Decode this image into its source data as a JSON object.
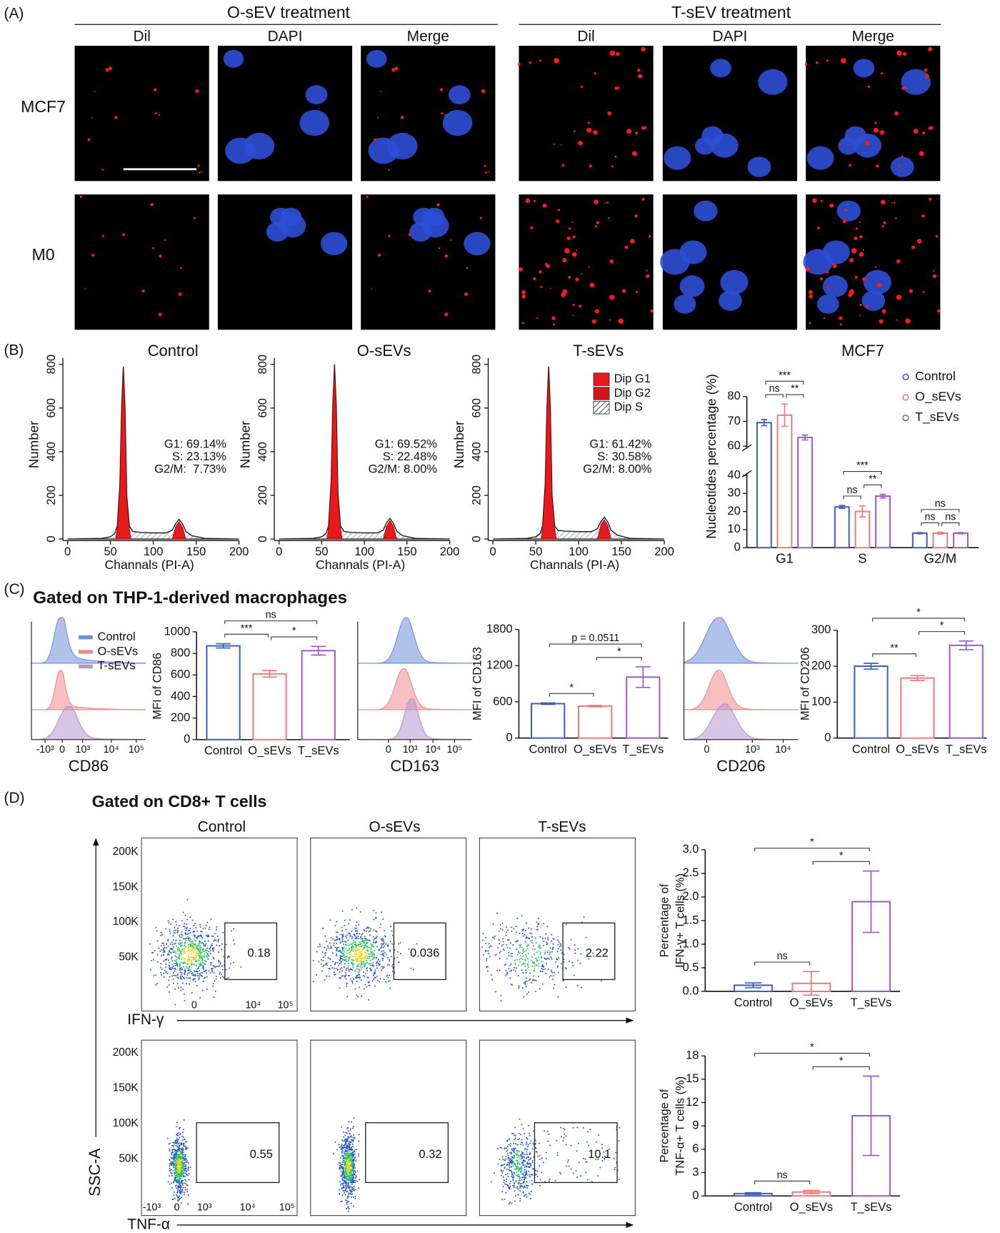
{
  "panels": {
    "A": {
      "label": "(A)",
      "groups": [
        "O-sEV treatment",
        "T-sEV treatment"
      ],
      "channels": [
        "Dil",
        "DAPI",
        "Merge"
      ],
      "rows": [
        "MCF7",
        "M0"
      ]
    },
    "B": {
      "label": "(B)"
    },
    "C": {
      "label": "(C)",
      "title": "Gated on THP-1-derived macrophages",
      "legend": [
        {
          "name": "Control",
          "color": "#6f8fd8"
        },
        {
          "name": "O-sEVs",
          "color": "#f08a8a"
        },
        {
          "name": "T-sEVs",
          "color": "#b795cf"
        }
      ],
      "histograms": [
        {
          "marker": "CD86",
          "xticks": [
            "-10³",
            "0",
            "10³",
            "10⁴",
            "10⁵"
          ]
        },
        {
          "marker": "CD163",
          "xticks": [
            "0",
            "10³",
            "10⁴",
            "10⁵"
          ]
        },
        {
          "marker": "CD206",
          "xticks": [
            "0",
            "10³",
            "10⁴"
          ]
        }
      ]
    },
    "D": {
      "label": "(D)",
      "title": "Gated on CD8+ T cells",
      "columns": [
        "Control",
        "O-sEVs",
        "T-sEVs"
      ],
      "yaxis": "SSC-A",
      "yticks": [
        "50K",
        "100K",
        "150K",
        "200K"
      ],
      "rows": [
        {
          "marker": "IFN-γ",
          "xticks": [
            "0",
            "10⁴",
            "10⁵"
          ],
          "gates": [
            0.18,
            0.036,
            2.22
          ]
        },
        {
          "marker": "TNF-α",
          "xticks": [
            "-10³",
            "0",
            "10³",
            "10⁴",
            "10⁵"
          ],
          "gates": [
            0.55,
            0.32,
            10.1
          ]
        }
      ]
    }
  },
  "chart_data": [
    {
      "type": "line",
      "title": "Control",
      "xlabel": "Channals (PI-A)",
      "ylabel": "Number",
      "xlim": [
        0,
        200
      ],
      "xticks": [
        0,
        50,
        100,
        150,
        200
      ],
      "ylim": [
        0,
        800
      ],
      "yticks": [
        0,
        200,
        400,
        600,
        800
      ],
      "color": "#222222",
      "fill_color": "#e8191c",
      "x": [
        0,
        40,
        50,
        55,
        58,
        61,
        63,
        65,
        67,
        69,
        72,
        76,
        85,
        100,
        115,
        122,
        126,
        130,
        134,
        138,
        145,
        160,
        200
      ],
      "values": [
        0,
        3,
        10,
        25,
        60,
        250,
        600,
        790,
        600,
        200,
        60,
        35,
        30,
        28,
        28,
        40,
        70,
        90,
        70,
        35,
        15,
        3,
        0
      ],
      "g1": {
        "x": [
          56,
          58,
          61,
          63,
          65,
          67,
          69,
          72,
          74
        ],
        "values": [
          0,
          50,
          240,
          590,
          780,
          590,
          190,
          50,
          0
        ]
      },
      "g2": {
        "x": [
          122,
          126,
          130,
          134,
          138
        ],
        "values": [
          0,
          55,
          80,
          55,
          0
        ]
      },
      "stats": [
        "G1: 69.14%",
        "S: 23.13%",
        "G2/M:  7.73%"
      ]
    },
    {
      "type": "line",
      "title": "O-sEVs",
      "xlabel": "Channals (PI-A)",
      "ylabel": "Number",
      "xlim": [
        0,
        200
      ],
      "xticks": [
        0,
        50,
        100,
        150,
        200
      ],
      "ylim": [
        0,
        800
      ],
      "yticks": [
        0,
        200,
        400,
        600,
        800
      ],
      "color": "#222222",
      "fill_color": "#e8191c",
      "x": [
        0,
        40,
        50,
        55,
        58,
        61,
        63,
        65,
        67,
        69,
        72,
        76,
        85,
        100,
        115,
        122,
        126,
        130,
        134,
        138,
        145,
        160,
        200
      ],
      "values": [
        0,
        3,
        10,
        25,
        60,
        260,
        620,
        800,
        610,
        210,
        60,
        35,
        30,
        28,
        28,
        40,
        75,
        95,
        72,
        35,
        15,
        3,
        0
      ],
      "g1": {
        "x": [
          56,
          58,
          61,
          63,
          65,
          67,
          69,
          72,
          74
        ],
        "values": [
          0,
          50,
          250,
          610,
          790,
          600,
          200,
          50,
          0
        ]
      },
      "g2": {
        "x": [
          122,
          126,
          130,
          134,
          138
        ],
        "values": [
          0,
          60,
          85,
          58,
          0
        ]
      },
      "stats": [
        "G1: 69.52%",
        "S: 22.48%",
        "G2/M: 8.00%"
      ]
    },
    {
      "type": "line",
      "title": "T-sEVs",
      "xlabel": "Channals (PI-A)",
      "ylabel": "Number",
      "xlim": [
        0,
        200
      ],
      "xticks": [
        0,
        50,
        100,
        150,
        200
      ],
      "ylim": [
        0,
        800
      ],
      "yticks": [
        0,
        200,
        400,
        600,
        800
      ],
      "color": "#222222",
      "fill_color": "#e8191c",
      "x": [
        0,
        40,
        50,
        55,
        58,
        61,
        63,
        65,
        67,
        69,
        72,
        76,
        85,
        100,
        115,
        122,
        126,
        130,
        134,
        138,
        145,
        160,
        200
      ],
      "values": [
        0,
        3,
        10,
        25,
        60,
        250,
        600,
        790,
        600,
        200,
        60,
        40,
        36,
        34,
        34,
        48,
        80,
        100,
        78,
        40,
        18,
        3,
        0
      ],
      "g1": {
        "x": [
          56,
          58,
          61,
          63,
          65,
          67,
          69,
          72,
          74
        ],
        "values": [
          0,
          50,
          240,
          590,
          780,
          590,
          190,
          50,
          0
        ]
      },
      "g2": {
        "x": [
          122,
          126,
          130,
          134,
          138
        ],
        "values": [
          0,
          65,
          88,
          62,
          0
        ]
      },
      "stats": [
        "G1: 61.42%",
        "S: 30.58%",
        "G2/M: 8.00%"
      ],
      "legend": [
        {
          "name": "Dip G1",
          "color": "#e8191c"
        },
        {
          "name": "Dip G2",
          "color": "#d4161a"
        },
        {
          "name": "Dip S",
          "pattern": "hatch"
        }
      ]
    },
    {
      "type": "bar",
      "title": "MCF7",
      "ylabel": "Nucleotides percentage (%)",
      "categories": [
        "G1",
        "S",
        "G2/M"
      ],
      "ylim": [
        0,
        80
      ],
      "axis_break": [
        40,
        60
      ],
      "yticks": [
        0,
        10,
        20,
        30,
        40,
        60,
        70,
        80
      ],
      "series": [
        {
          "name": "Control",
          "color": "#3a5bbf",
          "values": [
            69.5,
            22.5,
            8
          ],
          "errors": [
            1.2,
            0.8,
            0.3
          ]
        },
        {
          "name": "O_sEVs",
          "color": "#f07878",
          "values": [
            72.5,
            20,
            8
          ],
          "errors": [
            4.5,
            3,
            0.5
          ]
        },
        {
          "name": "T_sEVs",
          "color": "#a155c8",
          "values": [
            63.5,
            28.5,
            8
          ],
          "errors": [
            1,
            1,
            0.3
          ]
        }
      ],
      "comparisons": [
        {
          "category": "G1",
          "between": [
            "Control",
            "O_sEVs"
          ],
          "label": "ns"
        },
        {
          "category": "G1",
          "between": [
            "O_sEVs",
            "T_sEVs"
          ],
          "label": "**"
        },
        {
          "category": "G1",
          "between": [
            "Control",
            "T_sEVs"
          ],
          "label": "***"
        },
        {
          "category": "S",
          "between": [
            "Control",
            "O_sEVs"
          ],
          "label": "ns"
        },
        {
          "category": "S",
          "between": [
            "O_sEVs",
            "T_sEVs"
          ],
          "label": "**"
        },
        {
          "category": "S",
          "between": [
            "Control",
            "T_sEVs"
          ],
          "label": "***"
        },
        {
          "category": "G2/M",
          "between": [
            "Control",
            "O_sEVs"
          ],
          "label": "ns"
        },
        {
          "category": "G2/M",
          "between": [
            "O_sEVs",
            "T_sEVs"
          ],
          "label": "ns"
        },
        {
          "category": "G2/M",
          "between": [
            "Control",
            "T_sEVs"
          ],
          "label": "ns"
        }
      ]
    },
    {
      "type": "bar",
      "ylabel": "MFI of CD86",
      "categories": [
        "Control",
        "O_sEVs",
        "T_sEVs"
      ],
      "colors": [
        "#3a5bbf",
        "#f07878",
        "#a155c8"
      ],
      "values": [
        870,
        610,
        825
      ],
      "errors": [
        20,
        30,
        40
      ],
      "ylim": [
        0,
        1000
      ],
      "yticks": [
        0,
        200,
        400,
        600,
        800,
        1000
      ],
      "comparisons": [
        {
          "between": [
            "Control",
            "O_sEVs"
          ],
          "label": "***"
        },
        {
          "between": [
            "O_sEVs",
            "T_sEVs"
          ],
          "label": "*"
        },
        {
          "between": [
            "Control",
            "T_sEVs"
          ],
          "label": "ns"
        }
      ]
    },
    {
      "type": "bar",
      "ylabel": "MFI of CD163",
      "categories": [
        "Control",
        "O_sEVs",
        "T_sEVs"
      ],
      "colors": [
        "#3a5bbf",
        "#f07878",
        "#a155c8"
      ],
      "values": [
        570,
        530,
        1010
      ],
      "errors": [
        12,
        10,
        170
      ],
      "ylim": [
        0,
        1800
      ],
      "yticks": [
        0,
        600,
        1200,
        1800
      ],
      "comparisons": [
        {
          "between": [
            "Control",
            "O_sEVs"
          ],
          "label": "*"
        },
        {
          "between": [
            "O_sEVs",
            "T_sEVs"
          ],
          "label": "*"
        },
        {
          "between": [
            "Control",
            "T_sEVs"
          ],
          "label": "p = 0.0511"
        }
      ]
    },
    {
      "type": "bar",
      "ylabel": "MFI of CD206",
      "categories": [
        "Control",
        "O_sEVs",
        "T_sEVs"
      ],
      "colors": [
        "#3a5bbf",
        "#f07878",
        "#a155c8"
      ],
      "values": [
        200,
        167,
        258
      ],
      "errors": [
        8,
        7,
        12
      ],
      "ylim": [
        0,
        300
      ],
      "yticks": [
        0,
        100,
        200,
        300
      ],
      "comparisons": [
        {
          "between": [
            "Control",
            "O_sEVs"
          ],
          "label": "**"
        },
        {
          "between": [
            "O_sEVs",
            "T_sEVs"
          ],
          "label": "*"
        },
        {
          "between": [
            "Control",
            "T_sEVs"
          ],
          "label": "*"
        }
      ]
    },
    {
      "type": "bar",
      "ylabel": [
        "Percentage of",
        "IFN-γ+ T cells (%)"
      ],
      "categories": [
        "Control",
        "O_sEVs",
        "T_sEVs"
      ],
      "colors": [
        "#3a5bbf",
        "#f07878",
        "#a155c8"
      ],
      "values": [
        0.13,
        0.17,
        1.9
      ],
      "errors": [
        0.05,
        0.25,
        0.65
      ],
      "ylim": [
        0,
        3
      ],
      "yticks": [
        {
          "value": 0,
          "label": "0.0"
        },
        0.5,
        {
          "value": 1,
          "label": "1.0"
        },
        1.5,
        {
          "value": 2,
          "label": "2.0"
        },
        2.5,
        {
          "value": 3,
          "label": "3.0"
        }
      ],
      "comparisons": [
        {
          "between": [
            "Control",
            "O_sEVs"
          ],
          "label": "ns"
        },
        {
          "between": [
            "O_sEVs",
            "T_sEVs"
          ],
          "label": "*"
        },
        {
          "between": [
            "Control",
            "T_sEVs"
          ],
          "label": "*"
        }
      ]
    },
    {
      "type": "bar",
      "ylabel": [
        "Percentage of",
        "TNF-α+ T cells (%)"
      ],
      "categories": [
        "Control",
        "O_sEVs",
        "T_sEVs"
      ],
      "colors": [
        "#3a5bbf",
        "#f07878",
        "#a155c8"
      ],
      "values": [
        0.3,
        0.5,
        10.3
      ],
      "errors": [
        0.1,
        0.2,
        5.1
      ],
      "ylim": [
        0,
        18
      ],
      "yticks": [
        0,
        3,
        6,
        9,
        12,
        15,
        18
      ],
      "comparisons": [
        {
          "between": [
            "Control",
            "O_sEVs"
          ],
          "label": "ns"
        },
        {
          "between": [
            "O_sEVs",
            "T_sEVs"
          ],
          "label": "*"
        },
        {
          "between": [
            "Control",
            "T_sEVs"
          ],
          "label": "*"
        }
      ]
    }
  ]
}
